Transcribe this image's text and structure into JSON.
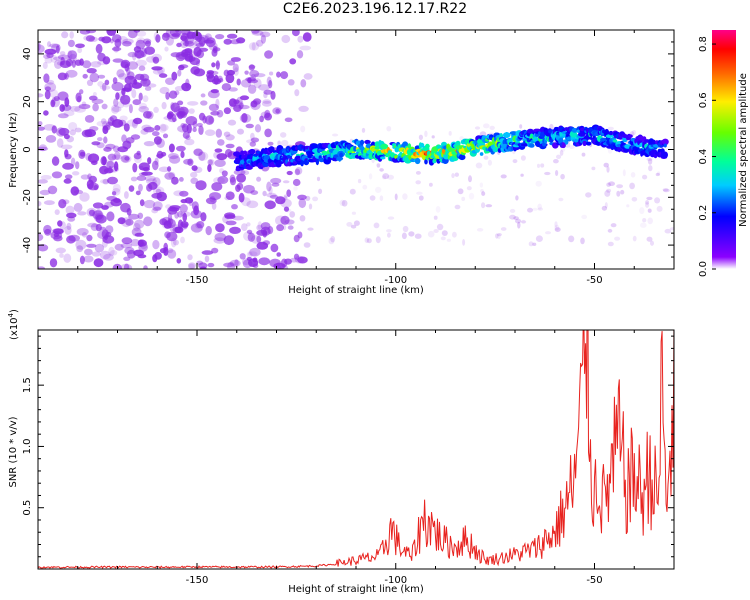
{
  "title": "C2E6.2023.196.12.17.R22",
  "colors": {
    "snr_line": "#e8231f",
    "noise": "#8a2be2",
    "frame": "#000000"
  },
  "chart_data": [
    {
      "type": "heatmap",
      "xlabel": "Height of straight line (km)",
      "ylabel": "Frequency (Hz)",
      "xlim": [
        -190,
        -30
      ],
      "ylim": [
        -50,
        50
      ],
      "x_ticks": [
        -150,
        -100,
        -50
      ],
      "y_ticks": [
        -40,
        -20,
        0,
        20,
        40
      ],
      "colorbar": {
        "label": "Normalized spectral amplitude",
        "range": [
          0.0,
          0.85
        ],
        "ticks": [
          0.0,
          0.2,
          0.4,
          0.6,
          0.8
        ],
        "colormap": "rainbow (violet-blue-cyan-green-yellow-red-magenta)"
      },
      "grid": false,
      "features": {
        "broadband_noise_region": [
          -190,
          -130
        ],
        "signal_ridge": [
          {
            "x": -140,
            "freq": -5,
            "amp": 0.3
          },
          {
            "x": -130,
            "freq": -3,
            "amp": 0.35
          },
          {
            "x": -120,
            "freq": -2,
            "amp": 0.4
          },
          {
            "x": -110,
            "freq": 0,
            "amp": 0.6
          },
          {
            "x": -100,
            "freq": -1,
            "amp": 0.75
          },
          {
            "x": -90,
            "freq": -2,
            "amp": 0.8
          },
          {
            "x": -80,
            "freq": 1,
            "amp": 0.7
          },
          {
            "x": -70,
            "freq": 4,
            "amp": 0.5
          },
          {
            "x": -60,
            "freq": 5,
            "amp": 0.4
          },
          {
            "x": -50,
            "freq": 6,
            "amp": 0.4
          },
          {
            "x": -40,
            "freq": 2,
            "amp": 0.35
          },
          {
            "x": -32,
            "freq": 0,
            "amp": 0.3
          }
        ]
      }
    },
    {
      "type": "line",
      "xlabel": "Height of straight line (km)",
      "ylabel": "SNR (10 * v/v)",
      "y_scale_label": "(x10",
      "y_scale_exp": "4",
      "y_scale_close": ")",
      "xlim": [
        -190,
        -30
      ],
      "ylim": [
        0,
        19500
      ],
      "x_ticks": [
        -150,
        -100,
        -50
      ],
      "y_ticks": [
        5000,
        10000,
        15000
      ],
      "y_tick_labels": [
        "0.5",
        "1.0",
        "1.5"
      ],
      "grid": false,
      "series": [
        {
          "x": [
            -190,
            -180,
            -170,
            -160,
            -150,
            -140,
            -130,
            -120,
            -112,
            -108,
            -104,
            -101,
            -99,
            -96,
            -93,
            -91,
            -89,
            -87,
            -85,
            -83,
            -81,
            -79,
            -77,
            -75,
            -70,
            -65,
            -60,
            -57,
            -55,
            -53,
            -52,
            -51,
            -50,
            -49,
            -48,
            -46,
            -44,
            -42,
            -40,
            -38,
            -36,
            -34,
            -33,
            -32,
            -31,
            -30
          ],
          "values": [
            150,
            150,
            160,
            150,
            170,
            160,
            170,
            250,
            500,
            700,
            900,
            2800,
            1500,
            800,
            3500,
            3000,
            2200,
            1800,
            1500,
            2000,
            1700,
            1000,
            600,
            700,
            1000,
            1400,
            2500,
            4500,
            6000,
            11500,
            19500,
            8000,
            5000,
            7000,
            4500,
            6000,
            9000,
            5500,
            6500,
            5000,
            7000,
            4500,
            13000,
            4000,
            8000,
            11000
          ]
        }
      ]
    }
  ]
}
